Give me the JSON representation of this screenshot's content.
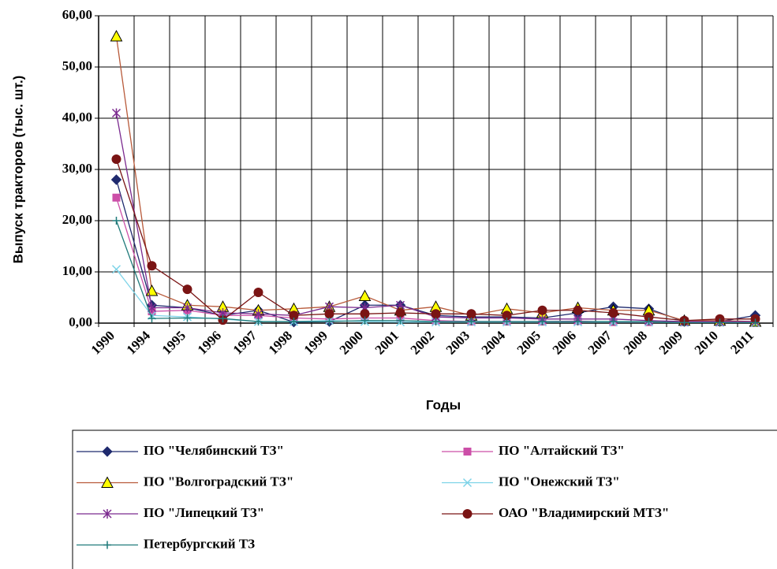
{
  "chart_data": {
    "type": "line",
    "ylabel": "Выпуск тракторов (тыс. шт.)",
    "xlabel": "Годы",
    "categories": [
      "1990",
      "1994",
      "1995",
      "1996",
      "1997",
      "1998",
      "1999",
      "2000",
      "2001",
      "2002",
      "2003",
      "2004",
      "2005",
      "2006",
      "2007",
      "2008",
      "2009",
      "2010",
      "2011"
    ],
    "ylim": [
      0,
      60
    ],
    "yticks": [
      {
        "value": 0,
        "label": "0,00"
      },
      {
        "value": 10,
        "label": "10,00"
      },
      {
        "value": 20,
        "label": "20,00"
      },
      {
        "value": 30,
        "label": "30,00"
      },
      {
        "value": 40,
        "label": "40,00"
      },
      {
        "value": 50,
        "label": "50,00"
      },
      {
        "value": 60,
        "label": "60,00"
      }
    ],
    "grid": true,
    "legend": "bottom",
    "series": [
      {
        "name": "ПО \"Челябинский ТЗ\"",
        "color": "#1f2a6e",
        "marker": "diamond",
        "marker_color": "#1f2a6e",
        "values": [
          28,
          3.5,
          3.0,
          1.5,
          2.5,
          0.2,
          0.3,
          3.5,
          3.5,
          1.5,
          1.2,
          1.2,
          1.0,
          2.0,
          3.2,
          2.8,
          0.3,
          0.3,
          1.5
        ]
      },
      {
        "name": "ПО \"Алтайский ТЗ\"",
        "color": "#cc4fa8",
        "marker": "square",
        "marker_color": "#cc4fa8",
        "values": [
          24.5,
          2.3,
          2.5,
          1.5,
          1.5,
          1.0,
          0.8,
          1.0,
          1.0,
          0.5,
          0.3,
          0.3,
          0.3,
          0.4,
          0.2,
          0.2,
          0.2,
          0.2,
          0.2
        ]
      },
      {
        "name": "ПО \"Волгоградский ТЗ\"",
        "color": "#b85a3a",
        "marker": "triangle",
        "marker_color": "#ffff00",
        "values": [
          56,
          6.3,
          3.5,
          3.2,
          2.5,
          2.8,
          3.2,
          5.3,
          2.5,
          3.2,
          1.5,
          2.8,
          2.0,
          3.0,
          2.5,
          2.5,
          0.5,
          0.5,
          0.3
        ]
      },
      {
        "name": "ПО \"Онежский ТЗ\"",
        "color": "#7dd3e8",
        "marker": "x",
        "marker_color": "#7dd3e8",
        "values": [
          10.5,
          1.5,
          1.2,
          0.8,
          0.3,
          0.3,
          0.5,
          0.3,
          0.2,
          0.2,
          0.2,
          0.2,
          0.2,
          0.2,
          0.2,
          0.2,
          0.1,
          0.1,
          0.1
        ]
      },
      {
        "name": "ПО \"Липецкий ТЗ\"",
        "color": "#7b2a8f",
        "marker": "star",
        "marker_color": "#7b2a8f",
        "values": [
          41,
          3.0,
          3.0,
          2.0,
          1.8,
          1.5,
          3.2,
          3.0,
          3.5,
          1.2,
          1.0,
          1.0,
          0.8,
          0.8,
          0.8,
          0.5,
          0.3,
          0.3,
          0.3
        ]
      },
      {
        "name": "ОАО \"Владимирский МТЗ\"",
        "color": "#7a1414",
        "marker": "circle",
        "marker_color": "#7a1414",
        "values": [
          32,
          11.2,
          6.6,
          0.6,
          6.0,
          1.5,
          1.8,
          1.8,
          2.0,
          1.8,
          1.8,
          1.5,
          2.5,
          2.5,
          2.0,
          1.2,
          0.5,
          0.8,
          0.8
        ]
      },
      {
        "name": "Петербургский ТЗ",
        "color": "#1f7a7a",
        "marker": "plus",
        "marker_color": "#1f7a7a",
        "values": [
          20,
          0.9,
          1.0,
          0.9,
          0.3,
          0.3,
          0.3,
          0.5,
          0.5,
          0.3,
          0.3,
          0.3,
          0.3,
          0.3,
          0.3,
          0.3,
          0.1,
          0.1,
          0.1
        ]
      }
    ]
  }
}
